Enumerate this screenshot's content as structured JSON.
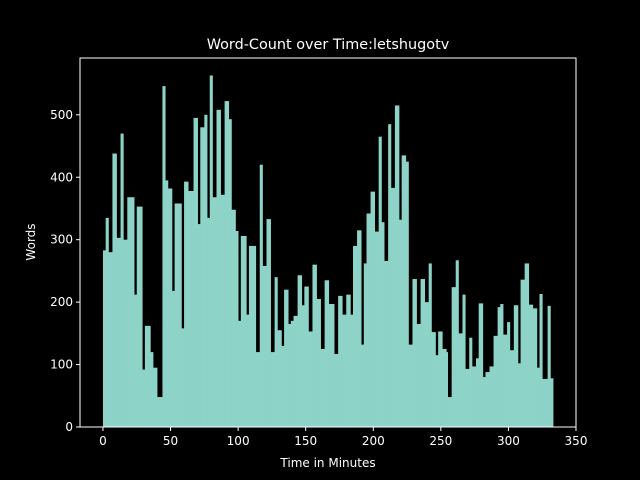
{
  "chart_data": {
    "type": "bar",
    "title": "Word-Count over Time:letshugotv",
    "xlabel": "Time in Minutes",
    "ylabel": "Words",
    "color": "#8dd3c7",
    "x": [
      0,
      2,
      4,
      7,
      10,
      13,
      15,
      18,
      23,
      25,
      29,
      31,
      35,
      37,
      40,
      44,
      46,
      48,
      51,
      53,
      58,
      60,
      63,
      67,
      70,
      72,
      75,
      77,
      79,
      81,
      84,
      87,
      90,
      93,
      95,
      98,
      100,
      102,
      106,
      108,
      113,
      116,
      118,
      121,
      124,
      127,
      129,
      132,
      134,
      137,
      139,
      141,
      144,
      147,
      149,
      152,
      155,
      158,
      161,
      164,
      167,
      171,
      174,
      177,
      180,
      183,
      185,
      188,
      191,
      193,
      195,
      198,
      201,
      204,
      206,
      208,
      211,
      213,
      216,
      219,
      221,
      224,
      226,
      229,
      232,
      235,
      238,
      241,
      243,
      246,
      248,
      251,
      254,
      255,
      258,
      261,
      263,
      266,
      268,
      271,
      273,
      276,
      278,
      281,
      283,
      286,
      289,
      292,
      294,
      296,
      299,
      301,
      304,
      307,
      309,
      312,
      315,
      318,
      321,
      323,
      325,
      329,
      331
    ],
    "values": [
      283,
      335,
      280,
      438,
      303,
      470,
      300,
      368,
      212,
      353,
      92,
      162,
      120,
      95,
      48,
      546,
      395,
      382,
      218,
      358,
      158,
      393,
      378,
      495,
      325,
      480,
      500,
      335,
      563,
      368,
      508,
      372,
      522,
      493,
      348,
      314,
      170,
      306,
      180,
      290,
      120,
      420,
      258,
      333,
      120,
      240,
      155,
      130,
      220,
      165,
      170,
      178,
      243,
      195,
      225,
      153,
      260,
      205,
      125,
      235,
      197,
      117,
      210,
      180,
      212,
      180,
      290,
      315,
      132,
      262,
      342,
      377,
      313,
      465,
      328,
      266,
      485,
      383,
      515,
      332,
      435,
      425,
      132,
      237,
      165,
      237,
      200,
      262,
      152,
      115,
      153,
      125,
      120,
      48,
      224,
      267,
      150,
      212,
      93,
      143,
      97,
      110,
      198,
      80,
      88,
      97,
      146,
      192,
      197,
      148,
      168,
      123,
      195,
      102,
      236,
      262,
      196,
      190,
      95,
      213,
      77,
      194,
      78
    ],
    "xlim": [
      -17,
      350
    ],
    "ylim": [
      0,
      591
    ],
    "xticks": [
      0,
      50,
      100,
      150,
      200,
      250,
      300,
      350
    ],
    "yticks": [
      0,
      100,
      200,
      300,
      400,
      500
    ]
  }
}
